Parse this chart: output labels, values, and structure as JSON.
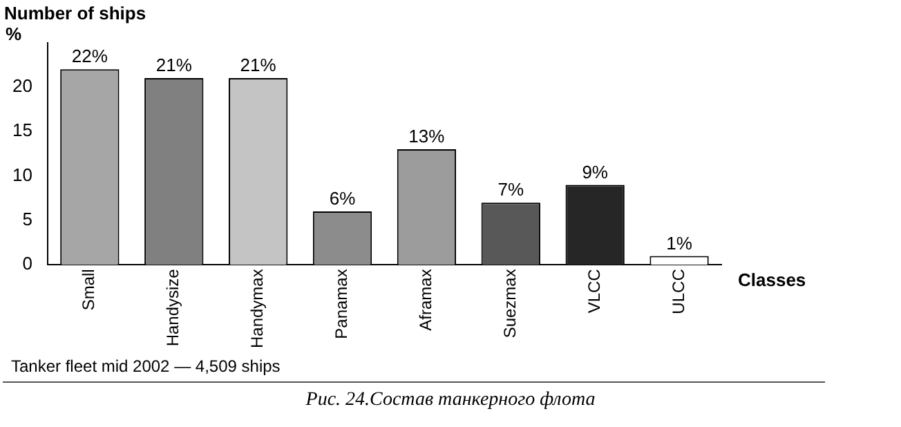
{
  "chart_data": {
    "type": "bar",
    "title": "Number of ships",
    "ylabel": "%",
    "xlabel": "Classes",
    "categories": [
      "Small",
      "Handysize",
      "Handymax",
      "Panamax",
      "Aframax",
      "Suezmax",
      "VLCC",
      "ULCC"
    ],
    "values": [
      22,
      21,
      21,
      6,
      13,
      7,
      9,
      1
    ],
    "colors": [
      "#a6a6a6",
      "#808080",
      "#c4c4c4",
      "#8c8c8c",
      "#9c9c9c",
      "#585858",
      "#262626",
      "#ffffff"
    ],
    "value_labels": [
      "22%",
      "21%",
      "21%",
      "6%",
      "13%",
      "7%",
      "9%",
      "1%"
    ],
    "ylim": [
      0,
      25
    ],
    "yticks": [
      0,
      5,
      10,
      15,
      20
    ],
    "grid": false,
    "annotations": [
      "Tanker fleet mid 2002  —  4,509 ships",
      "Рис. 24.Состав танкерного флота"
    ]
  }
}
